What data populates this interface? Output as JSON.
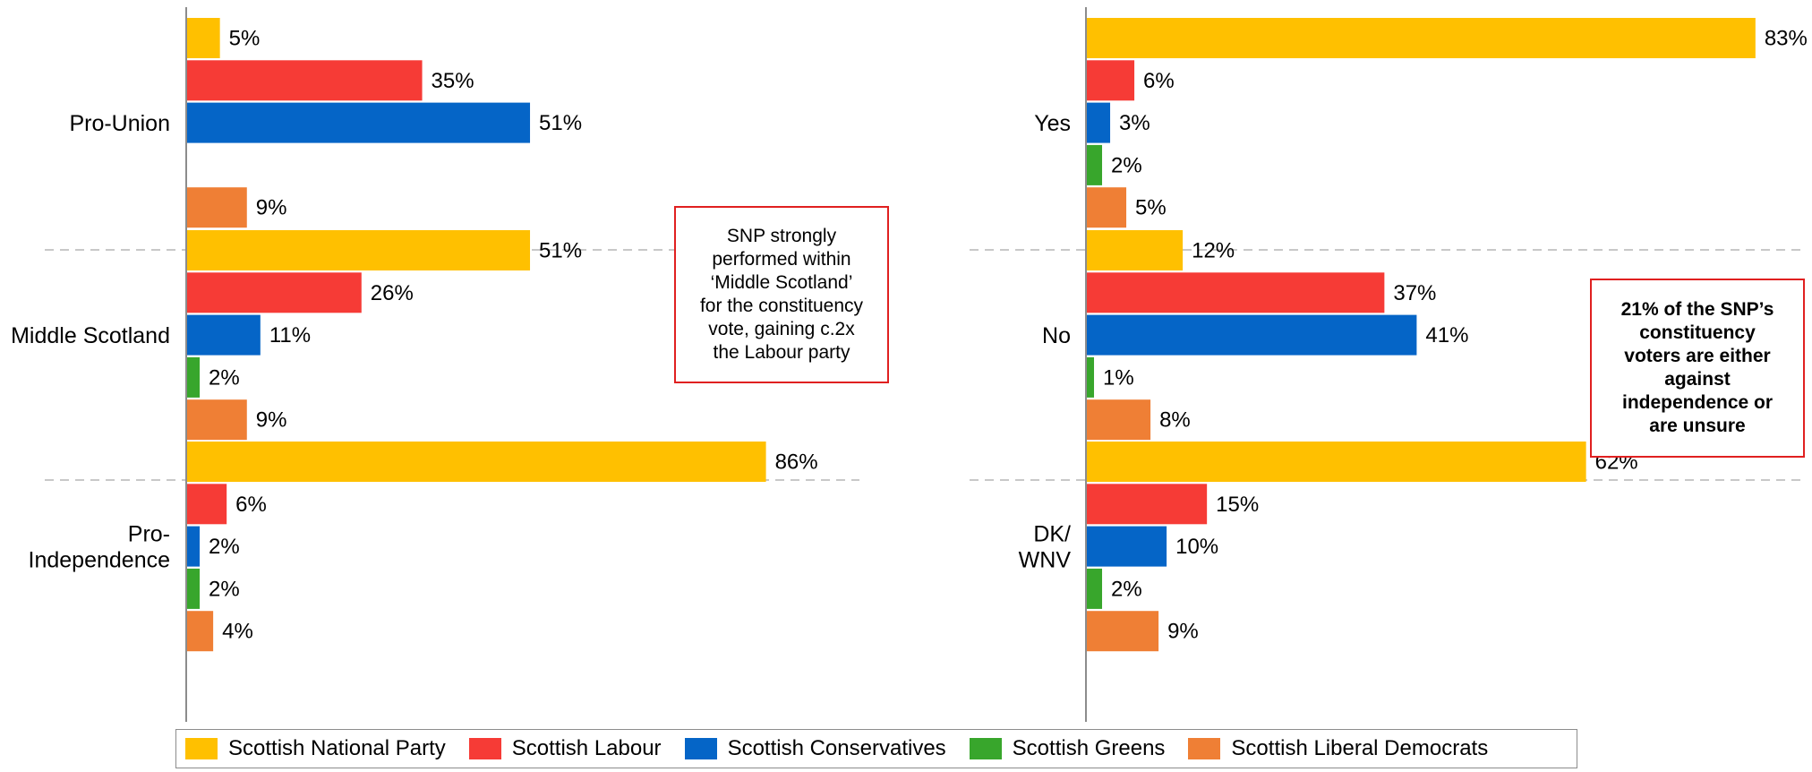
{
  "colors": {
    "Scottish National Party": "#FFC000",
    "Scottish Labour": "#F63B36",
    "Scottish Conservatives": "#0565C7",
    "Scottish Greens": "#38A62C",
    "Scottish Liberal Democrats": "#EF7F35"
  },
  "chart_data": [
    {
      "type": "bar",
      "orientation": "horizontal",
      "groups": [
        {
          "label": "Pro-Union",
          "values": [
            {
              "series": "Scottish National Party",
              "value": 5,
              "label": "5%"
            },
            {
              "series": "Scottish Labour",
              "value": 35,
              "label": "35%"
            },
            {
              "series": "Scottish Conservatives",
              "value": 51,
              "label": "51%"
            },
            {
              "series": "Scottish Liberal Democrats",
              "value": 9,
              "label": "9%"
            }
          ]
        },
        {
          "label": "Middle Scotland",
          "values": [
            {
              "series": "Scottish National Party",
              "value": 51,
              "label": "51%"
            },
            {
              "series": "Scottish Labour",
              "value": 26,
              "label": "26%"
            },
            {
              "series": "Scottish Conservatives",
              "value": 11,
              "label": "11%"
            },
            {
              "series": "Scottish Greens",
              "value": 2,
              "label": "2%"
            },
            {
              "series": "Scottish Liberal Democrats",
              "value": 9,
              "label": "9%"
            }
          ]
        },
        {
          "label": "Pro-Independence",
          "values": [
            {
              "series": "Scottish National Party",
              "value": 86,
              "label": "86%"
            },
            {
              "series": "Scottish Labour",
              "value": 6,
              "label": "6%"
            },
            {
              "series": "Scottish Conservatives",
              "value": 2,
              "label": "2%"
            },
            {
              "series": "Scottish Greens",
              "value": 2,
              "label": "2%"
            },
            {
              "series": "Scottish Liberal Democrats",
              "value": 4,
              "label": "4%"
            }
          ]
        }
      ]
    },
    {
      "type": "bar",
      "orientation": "horizontal",
      "groups": [
        {
          "label": "Yes",
          "values": [
            {
              "series": "Scottish National Party",
              "value": 83,
              "label": "83%"
            },
            {
              "series": "Scottish Labour",
              "value": 6,
              "label": "6%"
            },
            {
              "series": "Scottish Conservatives",
              "value": 3,
              "label": "3%"
            },
            {
              "series": "Scottish Greens",
              "value": 2,
              "label": "2%"
            },
            {
              "series": "Scottish Liberal Democrats",
              "value": 5,
              "label": "5%"
            }
          ]
        },
        {
          "label": "No",
          "values": [
            {
              "series": "Scottish National Party",
              "value": 12,
              "label": "12%"
            },
            {
              "series": "Scottish Labour",
              "value": 37,
              "label": "37%"
            },
            {
              "series": "Scottish Conservatives",
              "value": 41,
              "label": "41%"
            },
            {
              "series": "Scottish Greens",
              "value": 1,
              "label": "1%"
            },
            {
              "series": "Scottish Liberal Democrats",
              "value": 8,
              "label": "8%"
            }
          ]
        },
        {
          "label": "DK/ WNV",
          "values": [
            {
              "series": "Scottish National Party",
              "value": 62,
              "label": "62%"
            },
            {
              "series": "Scottish Labour",
              "value": 15,
              "label": "15%"
            },
            {
              "series": "Scottish Conservatives",
              "value": 10,
              "label": "10%"
            },
            {
              "series": "Scottish Greens",
              "value": 2,
              "label": "2%"
            },
            {
              "series": "Scottish Liberal Democrats",
              "value": 9,
              "label": "9%"
            }
          ]
        }
      ]
    }
  ],
  "callouts": {
    "left": [
      "SNP strongly",
      "performed within",
      "‘Middle Scotland’",
      "for the constituency",
      "vote, gaining c.2x",
      "the Labour party"
    ],
    "right": [
      "21% of the SNP’s",
      "constituency",
      "voters are either",
      "against",
      "independence or",
      "are unsure"
    ]
  },
  "legend": [
    "Scottish National Party",
    "Scottish Labour",
    "Scottish Conservatives",
    "Scottish Greens",
    "Scottish Liberal Democrats"
  ]
}
